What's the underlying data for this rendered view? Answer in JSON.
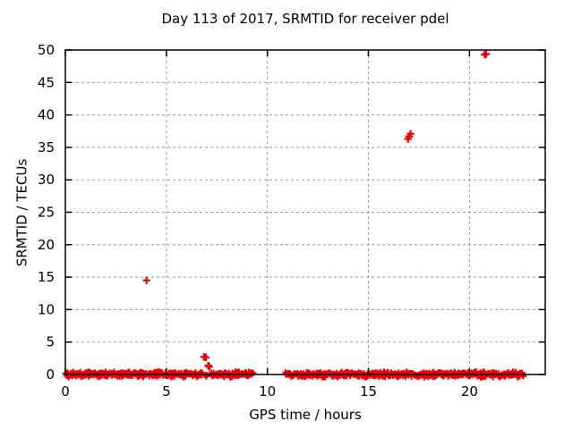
{
  "chart_data": {
    "type": "scatter",
    "title": "Day 113 of 2017, SRMTID for receiver pdel",
    "xlabel": "GPS time / hours",
    "ylabel": "SRMTID / TECUs",
    "xlim": [
      0,
      23.75
    ],
    "ylim": [
      0,
      50
    ],
    "xticks": [
      0,
      5,
      10,
      15,
      20
    ],
    "yticks": [
      0,
      5,
      10,
      15,
      20,
      25,
      30,
      35,
      40,
      45,
      50
    ],
    "grid": true,
    "legend": "none",
    "marker": "plus",
    "series_name": "SRMTID",
    "series_color": "#ee0000",
    "grid_color": "#999999",
    "border_color": "#000000",
    "baseline_band": {
      "y_center": 0,
      "jitter": 0.5,
      "x_step": 0.028,
      "segments": [
        [
          0,
          9.3
        ],
        [
          10.9,
          22.68
        ]
      ],
      "gaps": [
        [
          4.02,
          4.1
        ],
        [
          6.8,
          6.92
        ],
        [
          7.0,
          7.18
        ],
        [
          20.82,
          20.9
        ],
        [
          21.35,
          21.42
        ]
      ]
    },
    "outliers": [
      [
        4.02,
        14.5
      ],
      [
        6.86,
        2.7
      ],
      [
        6.95,
        2.65
      ],
      [
        7.07,
        1.35
      ],
      [
        7.12,
        1.2
      ],
      [
        16.96,
        36.3
      ],
      [
        17.02,
        36.7
      ],
      [
        17.08,
        37.1
      ],
      [
        20.75,
        49.3
      ],
      [
        20.82,
        49.4
      ]
    ]
  }
}
